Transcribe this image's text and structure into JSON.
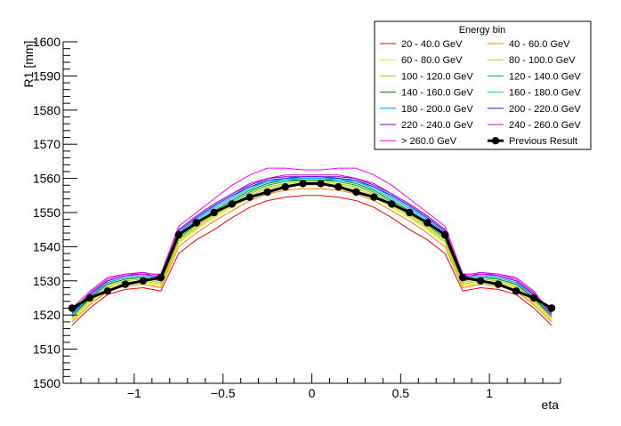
{
  "chart_data": {
    "type": "line",
    "title": "",
    "xlabel": "eta",
    "ylabel": "R1 [mm]",
    "xlim": [
      -1.4,
      1.4
    ],
    "ylim": [
      1500,
      1600
    ],
    "x_ticks": [
      -1,
      -0.5,
      0,
      0.5,
      1
    ],
    "x_tick_labels": [
      "−1",
      "−0.5",
      "0",
      "0.5",
      "1"
    ],
    "y_ticks": [
      1500,
      1510,
      1520,
      1530,
      1540,
      1550,
      1560,
      1570,
      1580,
      1590,
      1600
    ],
    "y_tick_labels": [
      "1500",
      "1510",
      "1520",
      "1530",
      "1540",
      "1550",
      "1560",
      "1570",
      "1580",
      "1590",
      "1600"
    ],
    "legend": {
      "title": "Energy bin",
      "placement": "top-right"
    },
    "x": [
      -1.35,
      -1.25,
      -1.15,
      -1.05,
      -0.95,
      -0.85,
      -0.75,
      -0.65,
      -0.55,
      -0.45,
      -0.35,
      -0.25,
      -0.15,
      -0.05,
      0.05,
      0.15,
      0.25,
      0.35,
      0.45,
      0.55,
      0.65,
      0.75,
      0.85,
      0.95,
      1.05,
      1.15,
      1.25,
      1.35
    ],
    "series": [
      {
        "name": "20 - 40.0 GeV",
        "color": "#ff0000",
        "marker": "none",
        "values": [
          1517,
          1522,
          1526,
          1527.5,
          1528,
          1527,
          1538,
          1542,
          1545,
          1548.5,
          1551.5,
          1553.5,
          1554.5,
          1555,
          1555,
          1554.5,
          1553.5,
          1551.5,
          1548.5,
          1545,
          1542,
          1538,
          1527,
          1528,
          1527.5,
          1526,
          1522,
          1517
        ]
      },
      {
        "name": "40 - 60.0 GeV",
        "color": "#ff8000",
        "marker": "none",
        "values": [
          1518,
          1523,
          1527,
          1528.5,
          1529,
          1528,
          1540,
          1544,
          1547.5,
          1550.5,
          1553.5,
          1555.5,
          1556.5,
          1557,
          1557,
          1556.5,
          1555.5,
          1553.5,
          1550.5,
          1547.5,
          1544,
          1540,
          1528,
          1529,
          1528.5,
          1527,
          1523,
          1518
        ]
      },
      {
        "name": "60 - 80.0 GeV",
        "color": "#e6e600",
        "marker": "none",
        "values": [
          1518.5,
          1523.5,
          1527.5,
          1529,
          1529.5,
          1528.5,
          1541,
          1545,
          1548.5,
          1551.5,
          1554.5,
          1556.5,
          1557.5,
          1558,
          1558,
          1557.5,
          1556.5,
          1554.5,
          1551.5,
          1548.5,
          1545,
          1541,
          1528.5,
          1529.5,
          1529,
          1527.5,
          1523.5,
          1518.5
        ]
      },
      {
        "name": "80 - 100.0 GeV",
        "color": "#c8c800",
        "marker": "none",
        "values": [
          1519,
          1524,
          1528,
          1529.5,
          1530,
          1529,
          1541.5,
          1545.5,
          1549,
          1552,
          1555,
          1557,
          1558,
          1558.5,
          1558.5,
          1558,
          1557,
          1555,
          1552,
          1549,
          1545.5,
          1541.5,
          1529,
          1530,
          1529.5,
          1528,
          1524,
          1519
        ]
      },
      {
        "name": "100 - 120.0 GeV",
        "color": "#99cc00",
        "marker": "none",
        "values": [
          1519.5,
          1524.5,
          1528.5,
          1530,
          1530.5,
          1529.5,
          1542,
          1546,
          1549.5,
          1552.5,
          1555.5,
          1557.5,
          1558.5,
          1559,
          1559,
          1558.5,
          1557.5,
          1555.5,
          1552.5,
          1549.5,
          1546,
          1542,
          1529.5,
          1530.5,
          1530,
          1528.5,
          1524.5,
          1519.5
        ]
      },
      {
        "name": "120 - 140.0 GeV",
        "color": "#00aa55",
        "marker": "none",
        "values": [
          1519.5,
          1525,
          1529,
          1530.5,
          1531,
          1530,
          1542.5,
          1546.5,
          1550,
          1553,
          1556,
          1558,
          1559,
          1559.5,
          1559.5,
          1559,
          1558,
          1556,
          1553,
          1550,
          1546.5,
          1542.5,
          1530,
          1531,
          1530.5,
          1529,
          1525,
          1519.5
        ]
      },
      {
        "name": "140 - 160.0 GeV",
        "color": "#008000",
        "marker": "none",
        "values": [
          1520,
          1525,
          1529,
          1530.5,
          1531,
          1530,
          1543,
          1547,
          1550.5,
          1553.5,
          1556.5,
          1558.5,
          1559.5,
          1559.5,
          1559.5,
          1559.5,
          1558.5,
          1556.5,
          1553.5,
          1550.5,
          1547,
          1543,
          1530,
          1531,
          1530.5,
          1529,
          1525,
          1520
        ]
      },
      {
        "name": "160 - 180.0 GeV",
        "color": "#00cccc",
        "marker": "none",
        "values": [
          1520,
          1525.5,
          1529.5,
          1531,
          1531.5,
          1530.5,
          1543.5,
          1547.5,
          1551,
          1554,
          1557,
          1559,
          1559.5,
          1560,
          1560,
          1559.5,
          1559,
          1557,
          1554,
          1551,
          1547.5,
          1543.5,
          1530.5,
          1531.5,
          1531,
          1529.5,
          1525.5,
          1520
        ]
      },
      {
        "name": "180 - 200.0 GeV",
        "color": "#0099ff",
        "marker": "none",
        "values": [
          1520.5,
          1525.5,
          1529.5,
          1531,
          1531.5,
          1530.5,
          1544,
          1548,
          1551.5,
          1554.5,
          1557.5,
          1559,
          1560,
          1560,
          1560,
          1560,
          1559,
          1557.5,
          1554.5,
          1551.5,
          1548,
          1544,
          1530.5,
          1531.5,
          1531,
          1529.5,
          1525.5,
          1520.5
        ]
      },
      {
        "name": "200 - 220.0 GeV",
        "color": "#1a1aff",
        "marker": "none",
        "values": [
          1520.5,
          1526,
          1530,
          1531.5,
          1532,
          1531,
          1544.5,
          1548.5,
          1552,
          1555,
          1557.5,
          1559.5,
          1560,
          1560.5,
          1560.5,
          1560,
          1559.5,
          1557.5,
          1555,
          1552,
          1548.5,
          1544.5,
          1531,
          1532,
          1531.5,
          1530,
          1526,
          1520.5
        ]
      },
      {
        "name": "220 - 240.0 GeV",
        "color": "#6600cc",
        "marker": "none",
        "values": [
          1521,
          1526,
          1530,
          1531.5,
          1532,
          1531,
          1545,
          1549,
          1552.5,
          1555.5,
          1558,
          1560,
          1560.5,
          1560.5,
          1560.5,
          1560.5,
          1560,
          1558,
          1555.5,
          1552.5,
          1549,
          1545,
          1531,
          1532,
          1531.5,
          1530,
          1526,
          1521
        ]
      },
      {
        "name": "240 - 260.0 GeV",
        "color": "#cc00cc",
        "marker": "none",
        "values": [
          1521,
          1526.5,
          1530.5,
          1532,
          1532.5,
          1531.5,
          1545,
          1549,
          1552.5,
          1555.5,
          1558.5,
          1560,
          1561,
          1561,
          1561,
          1561,
          1560,
          1558.5,
          1555.5,
          1552.5,
          1549,
          1545,
          1531.5,
          1532.5,
          1532,
          1530.5,
          1526.5,
          1521
        ]
      },
      {
        "name": "> 260.0 GeV",
        "color": "#ff00ff",
        "marker": "none",
        "values": [
          1522,
          1527,
          1531,
          1532,
          1532,
          1532,
          1546,
          1550,
          1554,
          1558,
          1561,
          1563,
          1563,
          1562.5,
          1562.5,
          1563,
          1563,
          1561,
          1558,
          1554,
          1550,
          1546,
          1532,
          1532,
          1532,
          1531,
          1527,
          1520
        ]
      },
      {
        "name": "Previous Result",
        "color": "#000000",
        "marker": "circle",
        "values": [
          1522,
          1525,
          1527,
          1529,
          1530,
          1531,
          1543.5,
          1547,
          1550,
          1552.5,
          1554.5,
          1556,
          1557.5,
          1558.5,
          1558.5,
          1557.5,
          1556,
          1554.5,
          1552.5,
          1550,
          1547,
          1543.5,
          1531,
          1530,
          1529,
          1527,
          1525,
          1522
        ]
      }
    ]
  }
}
